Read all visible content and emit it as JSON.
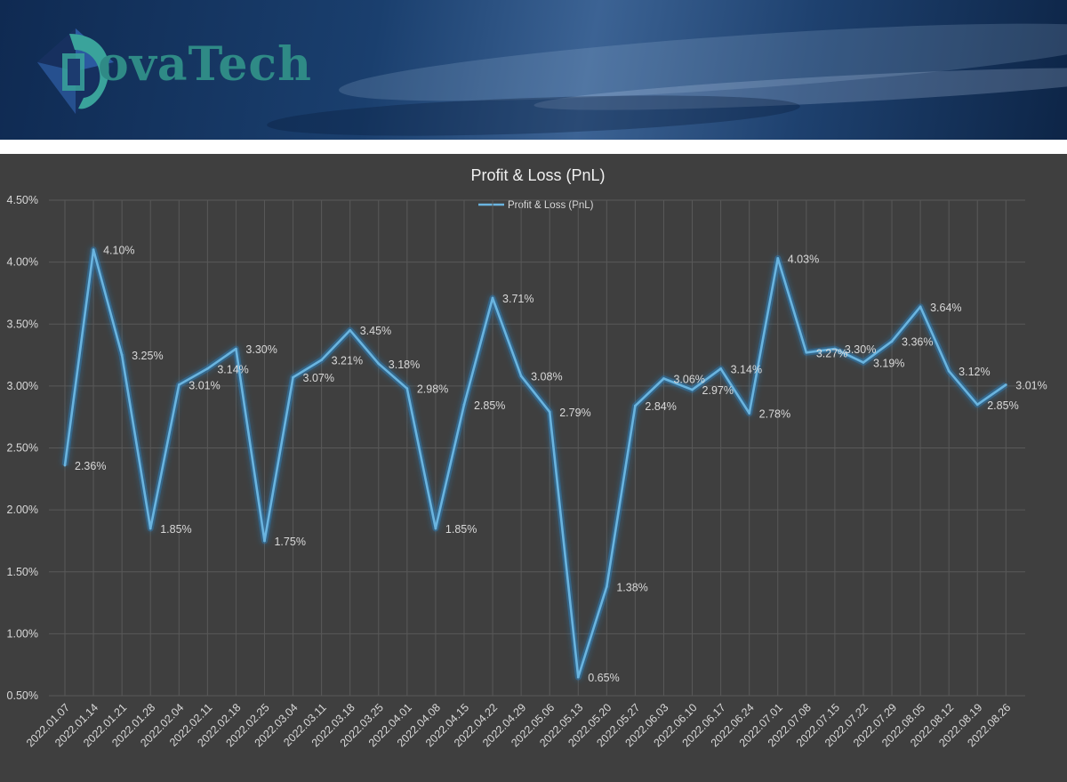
{
  "brand": {
    "name": "ovaTech",
    "logo_icon": "gem-logo-icon"
  },
  "colors": {
    "line": "#6ab4df",
    "glow": "#2f7fb8",
    "background": "#3f3f3f",
    "grid": "#595959",
    "text": "#d9d9d9"
  },
  "chart_data": {
    "type": "line",
    "title": "Profit & Loss (PnL)",
    "legend": {
      "position": "top",
      "entries": [
        "Profit & Loss (PnL)"
      ]
    },
    "grid": true,
    "ylim": [
      0.5,
      4.5
    ],
    "yticks": [
      "0.50%",
      "1.00%",
      "1.50%",
      "2.00%",
      "2.50%",
      "3.00%",
      "3.50%",
      "4.00%",
      "4.50%"
    ],
    "categories": [
      "2022.01.07",
      "2022.01.14",
      "2022.01.21",
      "2022.01.28",
      "2022.02.04",
      "2022.02.11",
      "2022.02.18",
      "2022.02.25",
      "2022.03.04",
      "2022.03.11",
      "2022.03.18",
      "2022.03.25",
      "2022.04.01",
      "2022.04.08",
      "2022.04.15",
      "2022.04.22",
      "2022.04.29",
      "2022.05.06",
      "2022.05.13",
      "2022.05.20",
      "2022.05.27",
      "2022.06.03",
      "2022.06.10",
      "2022.06.17",
      "2022.06.24",
      "2022.07.01",
      "2022.07.08",
      "2022.07.15",
      "2022.07.22",
      "2022.07.29",
      "2022.08.05",
      "2022.08.12",
      "2022.08.19",
      "2022.08.26"
    ],
    "series": [
      {
        "name": "Profit & Loss (PnL)",
        "values": [
          2.36,
          4.1,
          3.25,
          1.85,
          3.01,
          3.14,
          3.3,
          1.75,
          3.07,
          3.21,
          3.45,
          3.18,
          2.98,
          1.85,
          2.85,
          3.71,
          3.08,
          2.79,
          0.65,
          1.38,
          2.84,
          3.06,
          2.97,
          3.14,
          2.78,
          4.03,
          3.27,
          3.3,
          3.19,
          3.36,
          3.64,
          3.12,
          2.85,
          3.01
        ],
        "labels": [
          "2.36%",
          "4.10%",
          "3.25%",
          "1.85%",
          "3.01%",
          "3.14%",
          "3.30%",
          "1.75%",
          "3.07%",
          "3.21%",
          "3.45%",
          "3.18%",
          "2.98%",
          "1.85%",
          "2.85%",
          "3.71%",
          "3.08%",
          "2.79%",
          "0.65%",
          "1.38%",
          "2.84%",
          "3.06%",
          "2.97%",
          "3.14%",
          "2.78%",
          "4.03%",
          "3.27%",
          "3.30%",
          "3.19%",
          "3.36%",
          "3.64%",
          "3.12%",
          "2.85%",
          "3.01%"
        ]
      }
    ]
  }
}
